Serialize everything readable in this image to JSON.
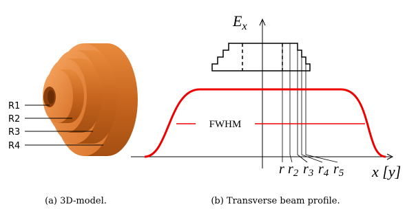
{
  "left_figure": {
    "labels": [
      "R1",
      "R2",
      "R3",
      "R4"
    ],
    "caption": "(a) 3D-model."
  },
  "right_figure": {
    "y_axis_label": {
      "base": "E",
      "sub": "x"
    },
    "x_axis_label": "x [y]",
    "annotation": "FWHM",
    "radii": [
      {
        "base": "r"
      },
      {
        "base": "r",
        "sub": "2"
      },
      {
        "base": "r",
        "sub": "3"
      },
      {
        "base": "r",
        "sub": "4"
      },
      {
        "base": "r",
        "sub": "5"
      }
    ],
    "caption": "(b) Transverse beam profile."
  }
}
